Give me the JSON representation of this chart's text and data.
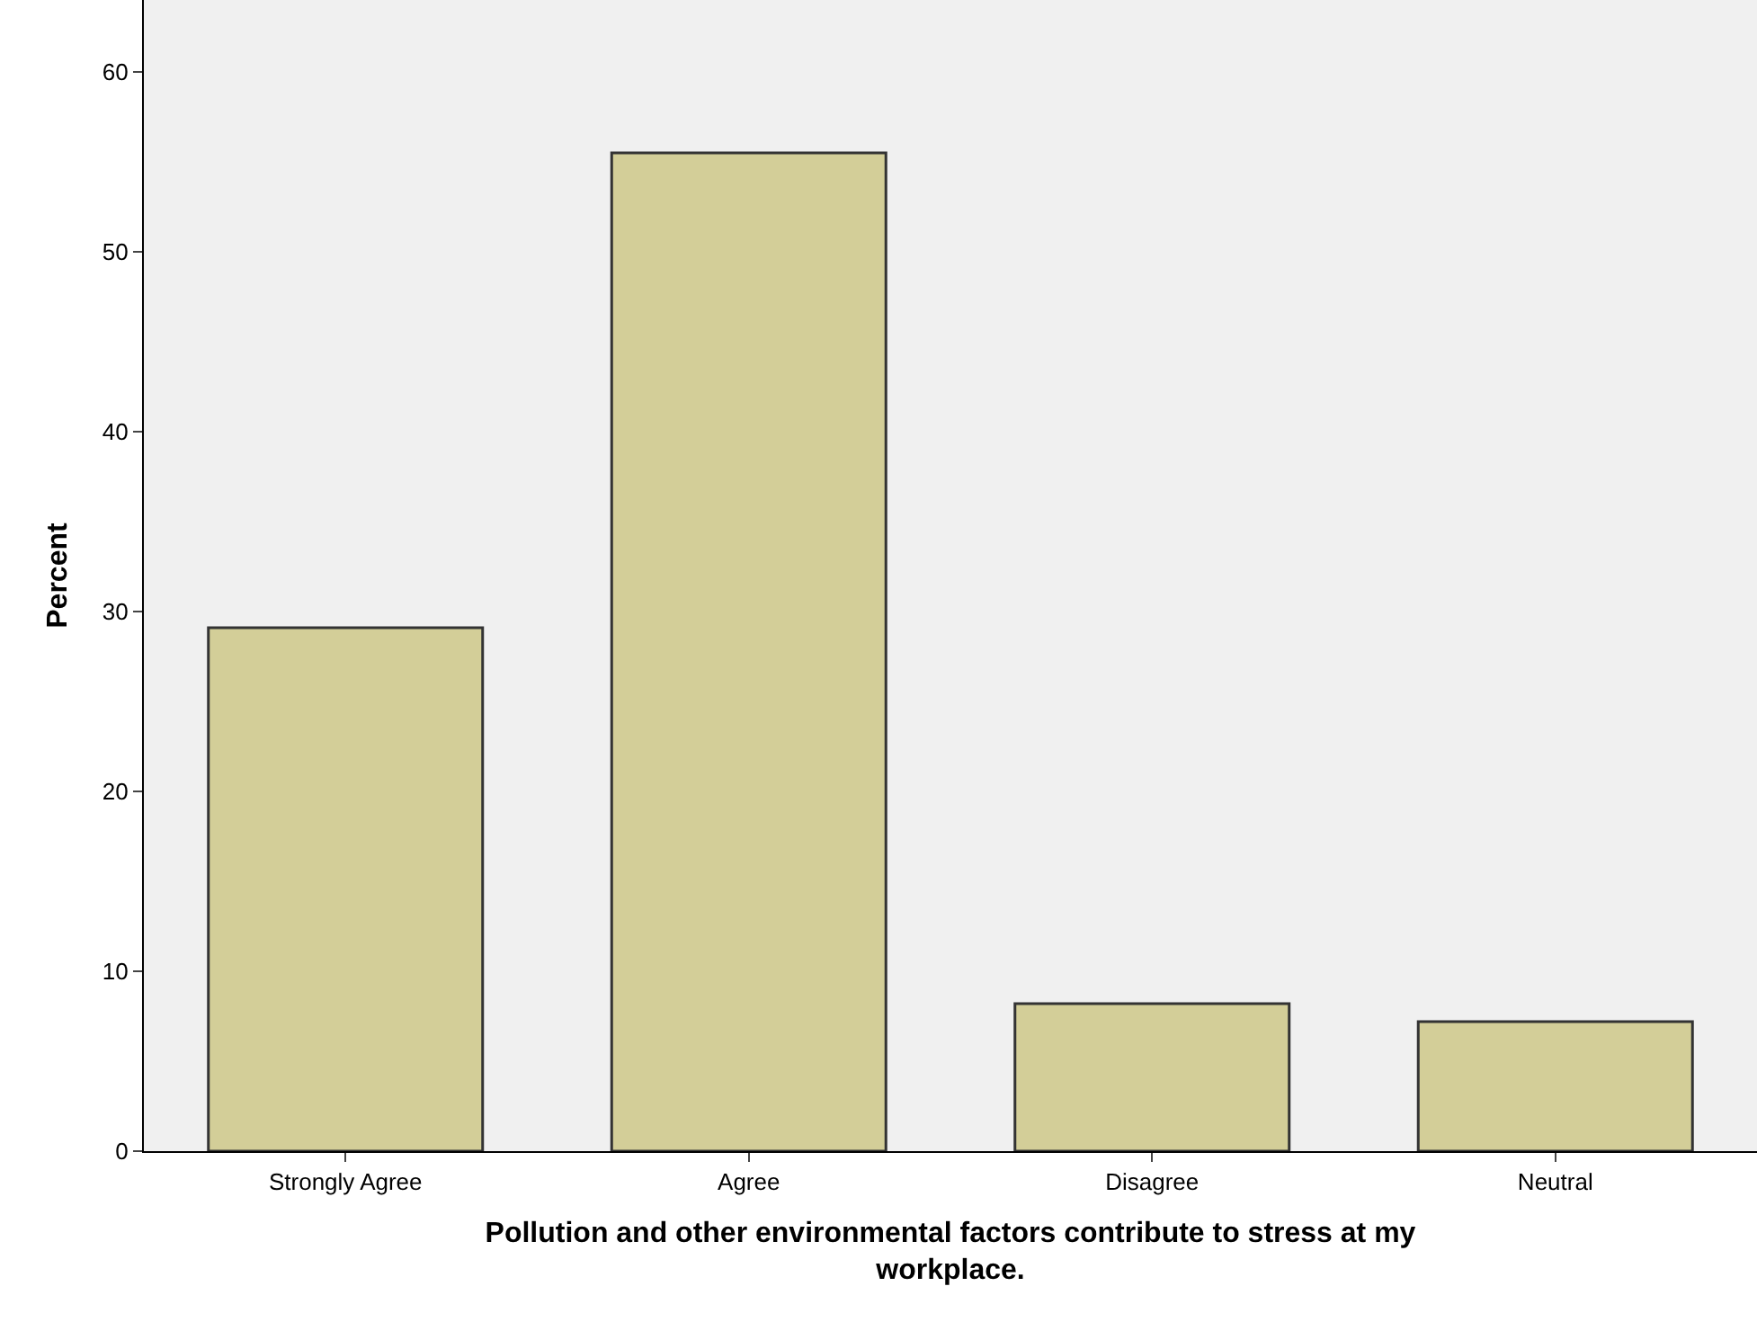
{
  "chart_data": {
    "type": "bar",
    "xlabel": "Pollution and other environmental factors contribute to stress at my workplace.",
    "ylabel": "Percent",
    "categories": [
      "Strongly Agree",
      "Agree",
      "Disagree",
      "Neutral"
    ],
    "values": [
      29.1,
      55.5,
      8.2,
      7.2
    ],
    "color": "#d3ce98",
    "ylim": [
      0,
      64
    ],
    "yticks": [
      0,
      10,
      20,
      30,
      40,
      50,
      60
    ],
    "grid": false,
    "legend": false
  }
}
